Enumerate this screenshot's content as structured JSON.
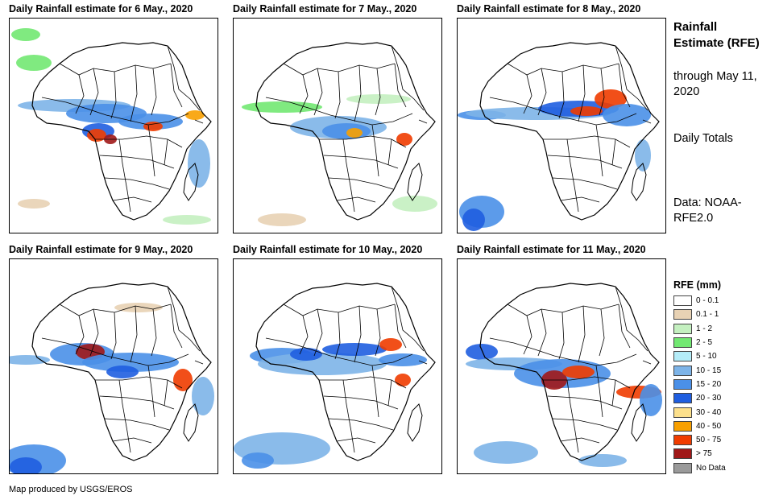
{
  "panels": [
    {
      "title": "Daily Rainfall estimate for 6 May., 2020"
    },
    {
      "title": "Daily Rainfall estimate for 7 May., 2020"
    },
    {
      "title": "Daily Rainfall estimate for 8 May., 2020"
    },
    {
      "title": "Daily Rainfall estimate for 9 May., 2020"
    },
    {
      "title": "Daily Rainfall estimate for 10 May., 2020"
    },
    {
      "title": "Daily Rainfall estimate for 11 May., 2020"
    }
  ],
  "sidebar": {
    "title": "Rainfall Estimate (RFE)",
    "through": "through May 11, 2020",
    "period": "Daily Totals",
    "source": "Data: NOAA-RFE2.0"
  },
  "legend": {
    "title": "RFE (mm)",
    "items": [
      {
        "label": "0 - 0.1",
        "color": "#ffffff"
      },
      {
        "label": "0.1 - 1",
        "color": "#e8d2b4"
      },
      {
        "label": "1 - 2",
        "color": "#c4f0c0"
      },
      {
        "label": "2 - 5",
        "color": "#72e872"
      },
      {
        "label": "5 - 10",
        "color": "#b4ecf8"
      },
      {
        "label": "10 - 15",
        "color": "#7db4e8"
      },
      {
        "label": "15 - 20",
        "color": "#4a90e8"
      },
      {
        "label": "20 - 30",
        "color": "#1f5ee0"
      },
      {
        "label": "30 - 40",
        "color": "#fce08c"
      },
      {
        "label": "40 - 50",
        "color": "#f8a000"
      },
      {
        "label": "50 - 75",
        "color": "#f03c00"
      },
      {
        "label": "> 75",
        "color": "#a01818"
      },
      {
        "label": "No Data",
        "color": "#9a9a9a"
      }
    ]
  },
  "credit": "Map produced by USGS/EROS"
}
